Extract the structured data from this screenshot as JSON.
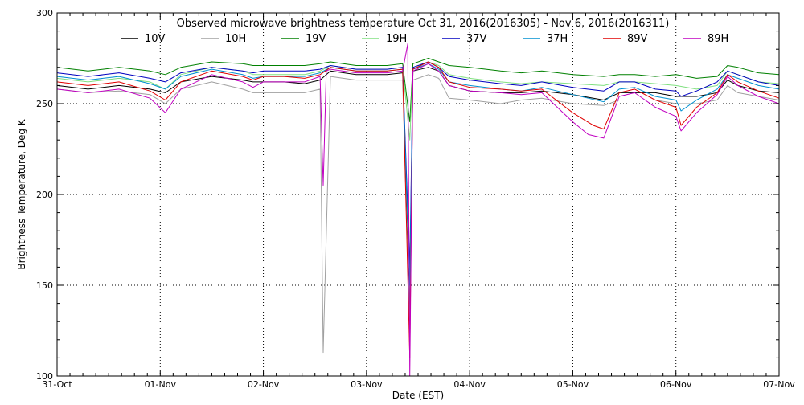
{
  "chart_data": {
    "type": "line",
    "title": "Observed microwave brightness temperature Oct 31, 2016(2016305) - Nov  6, 2016(2016311)",
    "xlabel": "Date (EST)",
    "ylabel": "Brightness Temperature, Deg K",
    "xlim": [
      0,
      7
    ],
    "ylim": [
      100,
      300
    ],
    "grid": true,
    "legend_position": "top",
    "x_ticks": [
      {
        "value": 0,
        "label": "31-Oct"
      },
      {
        "value": 1,
        "label": "01-Nov"
      },
      {
        "value": 2,
        "label": "02-Nov"
      },
      {
        "value": 3,
        "label": "03-Nov"
      },
      {
        "value": 4,
        "label": "04-Nov"
      },
      {
        "value": 5,
        "label": "05-Nov"
      },
      {
        "value": 6,
        "label": "06-Nov"
      },
      {
        "value": 7,
        "label": "07-Nov"
      }
    ],
    "y_ticks": [
      {
        "value": 100,
        "label": "100"
      },
      {
        "value": 150,
        "label": "150"
      },
      {
        "value": 200,
        "label": "200"
      },
      {
        "value": 250,
        "label": "250"
      },
      {
        "value": 300,
        "label": "300"
      }
    ],
    "series": [
      {
        "name": "10V",
        "color": "#000000",
        "x": [
          0,
          0.3,
          0.6,
          0.9,
          1.05,
          1.2,
          1.5,
          1.8,
          1.9,
          2.0,
          2.2,
          2.4,
          2.55,
          2.65,
          2.9,
          3.2,
          3.35,
          3.42,
          3.45,
          3.6,
          3.7,
          3.8,
          4.0,
          4.3,
          4.5,
          4.7,
          5.0,
          5.3,
          5.45,
          5.6,
          5.8,
          6.0,
          6.2,
          6.4,
          6.5,
          6.6,
          6.8,
          7.0
        ],
        "y": [
          260,
          258,
          260,
          258,
          256,
          262,
          265,
          263,
          262,
          262,
          262,
          261,
          263,
          268,
          266,
          266,
          267,
          130,
          268,
          270,
          268,
          260,
          257,
          256,
          256,
          257,
          255,
          252,
          256,
          256,
          256,
          254,
          254,
          256,
          263,
          260,
          257,
          256
        ]
      },
      {
        "name": "10H",
        "color": "#a0a0a0",
        "x": [
          0,
          0.3,
          0.6,
          0.9,
          1.05,
          1.2,
          1.5,
          1.8,
          1.9,
          2.0,
          2.2,
          2.4,
          2.55,
          2.58,
          2.65,
          2.9,
          3.2,
          3.35,
          3.42,
          3.45,
          3.6,
          3.7,
          3.8,
          4.0,
          4.3,
          4.5,
          4.7,
          5.0,
          5.3,
          5.45,
          5.6,
          5.8,
          6.0,
          6.2,
          6.4,
          6.5,
          6.6,
          6.8,
          7.0
        ],
        "y": [
          258,
          256,
          257,
          255,
          250,
          258,
          262,
          258,
          256,
          256,
          256,
          256,
          258,
          113,
          265,
          263,
          263,
          263,
          125,
          263,
          266,
          264,
          253,
          252,
          250,
          252,
          253,
          250,
          249,
          252,
          252,
          252,
          250,
          250,
          252,
          260,
          256,
          254,
          252
        ]
      },
      {
        "name": "19V",
        "color": "#008000",
        "x": [
          0,
          0.3,
          0.6,
          0.9,
          1.05,
          1.2,
          1.5,
          1.8,
          1.9,
          2.0,
          2.2,
          2.4,
          2.55,
          2.65,
          2.9,
          3.2,
          3.35,
          3.42,
          3.45,
          3.6,
          3.7,
          3.8,
          4.0,
          4.3,
          4.5,
          4.7,
          5.0,
          5.3,
          5.45,
          5.6,
          5.8,
          6.0,
          6.2,
          6.4,
          6.5,
          6.6,
          6.8,
          7.0
        ],
        "y": [
          270,
          268,
          270,
          268,
          266,
          270,
          273,
          272,
          271,
          271,
          271,
          271,
          272,
          273,
          271,
          271,
          272,
          240,
          272,
          275,
          273,
          271,
          270,
          268,
          267,
          268,
          266,
          265,
          266,
          266,
          265,
          266,
          264,
          265,
          271,
          270,
          267,
          266
        ]
      },
      {
        "name": "19H",
        "color": "#80e080",
        "x": [
          0,
          0.3,
          0.6,
          0.9,
          1.05,
          1.2,
          1.5,
          1.8,
          1.9,
          2.0,
          2.2,
          2.4,
          2.55,
          2.65,
          2.9,
          3.2,
          3.35,
          3.42,
          3.45,
          3.6,
          3.7,
          3.8,
          4.0,
          4.3,
          4.5,
          4.7,
          5.0,
          5.3,
          5.45,
          5.6,
          5.8,
          6.0,
          6.2,
          6.4,
          6.5,
          6.6,
          6.8,
          7.0
        ],
        "y": [
          264,
          262,
          264,
          262,
          258,
          266,
          270,
          268,
          266,
          266,
          266,
          266,
          268,
          271,
          269,
          269,
          270,
          230,
          270,
          273,
          271,
          266,
          264,
          262,
          261,
          262,
          261,
          260,
          262,
          262,
          261,
          260,
          258,
          260,
          268,
          266,
          262,
          261
        ]
      },
      {
        "name": "37V",
        "color": "#0000c0",
        "x": [
          0,
          0.3,
          0.6,
          0.9,
          1.05,
          1.2,
          1.5,
          1.8,
          1.9,
          2.0,
          2.2,
          2.4,
          2.55,
          2.65,
          2.9,
          3.2,
          3.35,
          3.42,
          3.45,
          3.6,
          3.7,
          3.8,
          4.0,
          4.3,
          4.5,
          4.7,
          5.0,
          5.3,
          5.45,
          5.6,
          5.8,
          6.0,
          6.05,
          6.2,
          6.4,
          6.5,
          6.6,
          6.8,
          7.0
        ],
        "y": [
          267,
          265,
          267,
          264,
          262,
          267,
          270,
          268,
          267,
          268,
          268,
          268,
          269,
          271,
          269,
          269,
          270,
          160,
          270,
          273,
          270,
          265,
          263,
          261,
          260,
          262,
          259,
          257,
          262,
          262,
          258,
          257,
          254,
          257,
          262,
          268,
          266,
          262,
          260
        ]
      },
      {
        "name": "37H",
        "color": "#0090d0",
        "x": [
          0,
          0.3,
          0.6,
          0.9,
          1.05,
          1.2,
          1.5,
          1.8,
          1.9,
          2.0,
          2.2,
          2.4,
          2.55,
          2.65,
          2.9,
          3.2,
          3.35,
          3.42,
          3.45,
          3.6,
          3.7,
          3.8,
          4.0,
          4.3,
          4.5,
          4.7,
          5.0,
          5.3,
          5.45,
          5.6,
          5.8,
          6.0,
          6.05,
          6.2,
          6.4,
          6.5,
          6.6,
          6.8,
          7.0
        ],
        "y": [
          265,
          263,
          265,
          261,
          258,
          265,
          269,
          266,
          264,
          265,
          265,
          265,
          267,
          270,
          268,
          268,
          269,
          150,
          269,
          272,
          269,
          262,
          260,
          258,
          257,
          259,
          255,
          251,
          258,
          259,
          254,
          252,
          246,
          252,
          258,
          266,
          264,
          260,
          258
        ]
      },
      {
        "name": "89V",
        "color": "#e00000",
        "x": [
          0,
          0.3,
          0.6,
          0.9,
          1.05,
          1.2,
          1.5,
          1.8,
          1.9,
          2.0,
          2.2,
          2.4,
          2.55,
          2.65,
          2.9,
          3.2,
          3.35,
          3.42,
          3.45,
          3.6,
          3.7,
          3.8,
          4.0,
          4.3,
          4.5,
          4.7,
          5.0,
          5.2,
          5.3,
          5.45,
          5.6,
          5.8,
          6.0,
          6.05,
          6.2,
          6.4,
          6.5,
          6.6,
          6.8,
          7.0
        ],
        "y": [
          262,
          260,
          262,
          257,
          252,
          262,
          268,
          265,
          263,
          265,
          265,
          264,
          266,
          270,
          268,
          268,
          269,
          110,
          269,
          273,
          270,
          262,
          259,
          258,
          257,
          258,
          245,
          238,
          236,
          256,
          258,
          252,
          248,
          238,
          248,
          256,
          266,
          262,
          257,
          253
        ]
      },
      {
        "name": "89H",
        "color": "#c000c0",
        "x": [
          0,
          0.3,
          0.6,
          0.9,
          1.05,
          1.2,
          1.5,
          1.8,
          1.9,
          2.0,
          2.2,
          2.4,
          2.55,
          2.58,
          2.61,
          2.65,
          2.9,
          3.2,
          3.35,
          3.4,
          3.42,
          3.45,
          3.6,
          3.7,
          3.8,
          4.0,
          4.3,
          4.5,
          4.7,
          5.0,
          5.15,
          5.3,
          5.45,
          5.6,
          5.8,
          6.0,
          6.05,
          6.2,
          6.4,
          6.5,
          6.6,
          6.8,
          7.0
        ],
        "y": [
          258,
          256,
          258,
          253,
          245,
          258,
          266,
          262,
          259,
          262,
          262,
          262,
          265,
          205,
          268,
          269,
          267,
          267,
          268,
          283,
          100,
          268,
          272,
          268,
          260,
          257,
          256,
          255,
          256,
          240,
          233,
          231,
          254,
          256,
          248,
          243,
          235,
          245,
          255,
          265,
          260,
          254,
          250
        ]
      }
    ]
  }
}
